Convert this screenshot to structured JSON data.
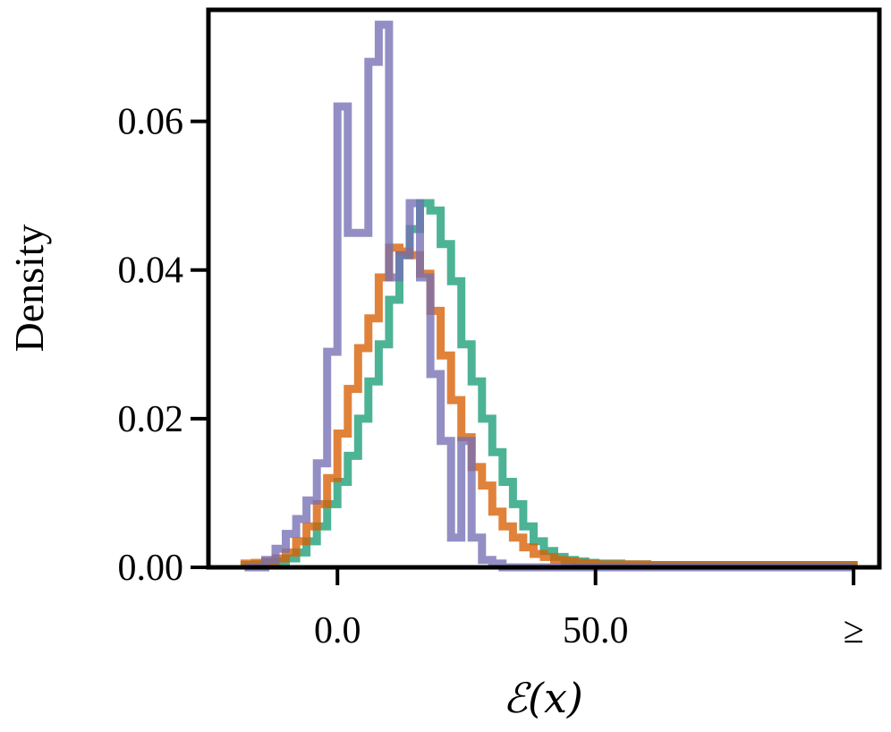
{
  "chart_data": {
    "type": "histogram-step",
    "title": "",
    "xlabel": "ℰ(x)",
    "ylabel": "Density",
    "xlim": [
      -25,
      105
    ],
    "ylim": [
      0,
      0.075
    ],
    "x_ticks": [
      {
        "value": 0,
        "label": "0.0"
      },
      {
        "value": 50,
        "label": "50.0"
      },
      {
        "value": 100,
        "label": "≥"
      }
    ],
    "y_ticks": [
      {
        "value": 0,
        "label": "0.00"
      },
      {
        "value": 0.02,
        "label": "0.02"
      },
      {
        "value": 0.04,
        "label": "0.04"
      },
      {
        "value": 0.06,
        "label": "0.06"
      }
    ],
    "grid": false,
    "legend": "none",
    "series": [
      {
        "color": "#1b9e77",
        "bin_edges": [
          -18,
          -16,
          -14,
          -12,
          -10,
          -8,
          -6,
          -4,
          -2,
          0,
          2,
          4,
          6,
          8,
          10,
          12,
          14,
          16,
          18,
          20,
          22,
          24,
          26,
          28,
          30,
          32,
          34,
          36,
          38,
          40,
          42,
          44,
          46,
          48,
          50,
          55,
          60,
          70,
          80,
          90,
          100
        ],
        "values": [
          0.0003,
          0.0004,
          0.0006,
          0.0008,
          0.0012,
          0.002,
          0.0035,
          0.0055,
          0.0085,
          0.0115,
          0.015,
          0.02,
          0.025,
          0.03,
          0.036,
          0.042,
          0.0455,
          0.049,
          0.048,
          0.0435,
          0.0385,
          0.03,
          0.025,
          0.02,
          0.0155,
          0.0115,
          0.0085,
          0.0055,
          0.0035,
          0.0022,
          0.0014,
          0.001,
          0.0008,
          0.0006,
          0.0005,
          0.0004,
          0.0003,
          0.0003,
          0.0003,
          0.0003
        ]
      },
      {
        "color": "#d95f02",
        "bin_edges": [
          -18,
          -16,
          -14,
          -12,
          -10,
          -8,
          -6,
          -4,
          -2,
          0,
          2,
          4,
          6,
          8,
          10,
          12,
          14,
          16,
          18,
          20,
          22,
          24,
          26,
          28,
          30,
          32,
          34,
          36,
          38,
          40,
          42,
          44,
          46,
          48,
          50,
          55,
          60,
          70,
          80,
          90,
          100
        ],
        "values": [
          0.0005,
          0.0006,
          0.0008,
          0.0012,
          0.002,
          0.0035,
          0.0055,
          0.0085,
          0.012,
          0.018,
          0.024,
          0.0295,
          0.0335,
          0.039,
          0.043,
          0.0425,
          0.042,
          0.0395,
          0.0345,
          0.0285,
          0.0225,
          0.0175,
          0.0135,
          0.011,
          0.0075,
          0.0055,
          0.004,
          0.0027,
          0.0018,
          0.0014,
          0.001,
          0.0008,
          0.0006,
          0.0005,
          0.0004,
          0.0004,
          0.0003,
          0.0003,
          0.0003,
          0.0003
        ]
      },
      {
        "color": "#7570b3",
        "bin_edges": [
          -18,
          -14,
          -12,
          -10,
          -8,
          -6,
          -4,
          -2,
          0,
          2,
          4,
          6,
          8,
          10,
          12,
          14,
          16,
          18,
          20,
          22,
          24,
          26,
          28,
          30,
          32,
          60,
          100
        ],
        "values": [
          0,
          0.001,
          0.0025,
          0.0045,
          0.0065,
          0.009,
          0.014,
          0.029,
          0.062,
          0.045,
          0.045,
          0.068,
          0.073,
          0.039,
          0.042,
          0.049,
          0.039,
          0.026,
          0.017,
          0.004,
          0.017,
          0.004,
          0.001,
          0.0005,
          0,
          0
        ]
      }
    ]
  }
}
